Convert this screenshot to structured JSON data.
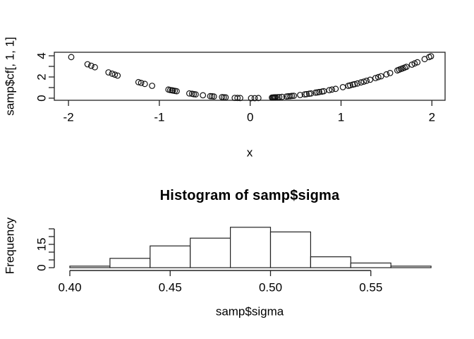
{
  "background": "#ffffff",
  "colors": {
    "foreground": "#000000",
    "axis_stroke": "#222222",
    "bar_fill": "#ffffff"
  },
  "chart_data": [
    {
      "type": "scatter",
      "title": "",
      "xlabel": "x",
      "ylabel": "samp$cf[, 1, 1]",
      "xlim": [
        -2.16,
        2.14
      ],
      "ylim": [
        -0.2,
        4.33
      ],
      "x_ticks": [
        -2,
        -1,
        0,
        1,
        2
      ],
      "x_tick_labels": [
        "-2",
        "-1",
        "0",
        "1",
        "2"
      ],
      "y_ticks": [
        0,
        1,
        2,
        3,
        4
      ],
      "y_tick_labels": [
        "0",
        "",
        "2",
        "",
        "4"
      ],
      "marker": "open-circle",
      "grid": false,
      "points": [
        [
          -1.97,
          3.88
        ],
        [
          -1.79,
          3.2
        ],
        [
          -1.75,
          3.06
        ],
        [
          -1.71,
          2.92
        ],
        [
          -1.56,
          2.43
        ],
        [
          -1.52,
          2.31
        ],
        [
          -1.49,
          2.22
        ],
        [
          -1.46,
          2.13
        ],
        [
          -1.23,
          1.51
        ],
        [
          -1.2,
          1.44
        ],
        [
          -1.16,
          1.35
        ],
        [
          -1.08,
          1.17
        ],
        [
          -0.9,
          0.81
        ],
        [
          -0.88,
          0.77
        ],
        [
          -0.86,
          0.74
        ],
        [
          -0.85,
          0.72
        ],
        [
          -0.83,
          0.69
        ],
        [
          -0.81,
          0.66
        ],
        [
          -0.67,
          0.45
        ],
        [
          -0.64,
          0.41
        ],
        [
          -0.62,
          0.38
        ],
        [
          -0.6,
          0.36
        ],
        [
          -0.52,
          0.27
        ],
        [
          -0.44,
          0.19
        ],
        [
          -0.42,
          0.18
        ],
        [
          -0.4,
          0.16
        ],
        [
          -0.31,
          0.1
        ],
        [
          -0.29,
          0.08
        ],
        [
          -0.27,
          0.07
        ],
        [
          -0.17,
          0.03
        ],
        [
          -0.14,
          0.02
        ],
        [
          -0.11,
          0.01
        ],
        [
          0.01,
          0.0
        ],
        [
          0.05,
          0.0
        ],
        [
          0.09,
          0.01
        ],
        [
          0.24,
          0.06
        ],
        [
          0.25,
          0.06
        ],
        [
          0.26,
          0.07
        ],
        [
          0.27,
          0.07
        ],
        [
          0.28,
          0.08
        ],
        [
          0.3,
          0.09
        ],
        [
          0.32,
          0.1
        ],
        [
          0.35,
          0.12
        ],
        [
          0.4,
          0.16
        ],
        [
          0.42,
          0.18
        ],
        [
          0.44,
          0.19
        ],
        [
          0.46,
          0.21
        ],
        [
          0.48,
          0.23
        ],
        [
          0.55,
          0.3
        ],
        [
          0.6,
          0.36
        ],
        [
          0.62,
          0.38
        ],
        [
          0.65,
          0.42
        ],
        [
          0.67,
          0.45
        ],
        [
          0.72,
          0.52
        ],
        [
          0.74,
          0.55
        ],
        [
          0.76,
          0.58
        ],
        [
          0.79,
          0.62
        ],
        [
          0.81,
          0.66
        ],
        [
          0.87,
          0.76
        ],
        [
          0.9,
          0.81
        ],
        [
          0.94,
          0.88
        ],
        [
          1.02,
          1.04
        ],
        [
          1.08,
          1.17
        ],
        [
          1.1,
          1.21
        ],
        [
          1.13,
          1.28
        ],
        [
          1.15,
          1.32
        ],
        [
          1.18,
          1.39
        ],
        [
          1.22,
          1.49
        ],
        [
          1.25,
          1.56
        ],
        [
          1.28,
          1.64
        ],
        [
          1.32,
          1.74
        ],
        [
          1.38,
          1.9
        ],
        [
          1.41,
          1.99
        ],
        [
          1.44,
          2.07
        ],
        [
          1.5,
          2.25
        ],
        [
          1.54,
          2.37
        ],
        [
          1.62,
          2.62
        ],
        [
          1.64,
          2.69
        ],
        [
          1.66,
          2.76
        ],
        [
          1.68,
          2.82
        ],
        [
          1.7,
          2.89
        ],
        [
          1.72,
          2.96
        ],
        [
          1.78,
          3.17
        ],
        [
          1.81,
          3.28
        ],
        [
          1.84,
          3.39
        ],
        [
          1.92,
          3.69
        ],
        [
          1.97,
          3.88
        ],
        [
          1.99,
          3.96
        ]
      ]
    },
    {
      "type": "bar",
      "subtype": "histogram",
      "title": "Histogram of samp$sigma",
      "xlabel": "samp$sigma",
      "ylabel": "Frequency",
      "bin_start": 0.4,
      "bin_width": 0.02,
      "bin_edges": [
        0.4,
        0.42,
        0.44,
        0.46,
        0.48,
        0.5,
        0.52,
        0.54,
        0.56,
        0.58
      ],
      "counts": [
        1,
        6,
        14,
        19,
        26,
        23,
        7,
        3,
        1
      ],
      "x_ticks": [
        0.4,
        0.45,
        0.5,
        0.55
      ],
      "x_tick_labels": [
        "0.40",
        "0.45",
        "0.50",
        "0.55"
      ],
      "y_ticks": [
        0,
        5,
        10,
        15,
        20,
        25
      ],
      "y_tick_labels": [
        "0",
        "",
        "",
        "15",
        "",
        ""
      ],
      "ylim": [
        0,
        26
      ],
      "grid": false
    }
  ]
}
